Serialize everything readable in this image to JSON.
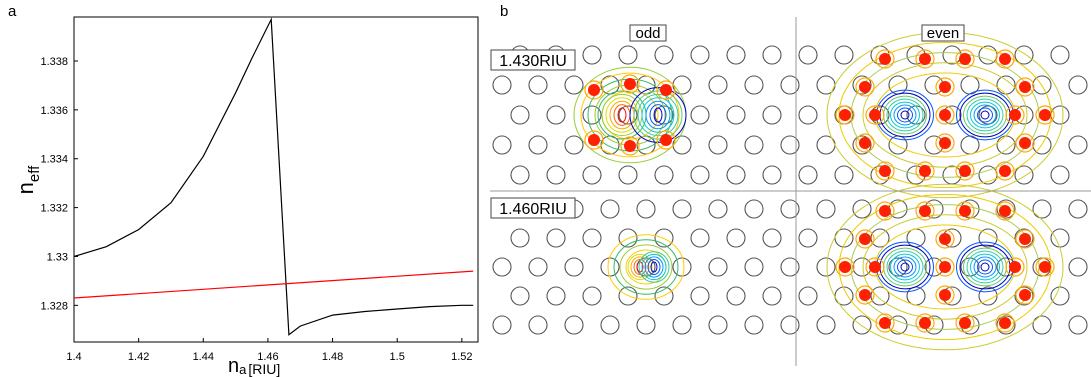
{
  "panel_labels": {
    "a": "a",
    "b": "b"
  },
  "chart_data": [
    {
      "type": "line",
      "panel": "a",
      "xlabel_main": "n",
      "xlabel_sub": "a",
      "xlabel_unit": "[RIU]",
      "ylabel_main": "n",
      "ylabel_sub": "eff",
      "xlim": [
        1.4,
        1.525
      ],
      "ylim": [
        1.3265,
        1.3398
      ],
      "xticks": [
        "1.4",
        "1.42",
        "1.44",
        "1.46",
        "1.48",
        "1.5",
        "1.52"
      ],
      "yticks": [
        "1.328",
        "1.33",
        "1.332",
        "1.334",
        "1.336",
        "1.338"
      ],
      "series": [
        {
          "color": "#000000",
          "x": [
            1.4,
            1.41,
            1.42,
            1.43,
            1.44,
            1.45,
            1.455,
            1.461,
            1.4665,
            1.47,
            1.48,
            1.49,
            1.5,
            1.51,
            1.52,
            1.5235
          ],
          "y": [
            1.33,
            1.3304,
            1.3311,
            1.3322,
            1.3341,
            1.3367,
            1.3381,
            1.3397,
            1.3268,
            1.32715,
            1.3276,
            1.32775,
            1.32785,
            1.32795,
            1.328,
            1.328
          ]
        },
        {
          "color": "#ff0000",
          "x": [
            1.4,
            1.5235
          ],
          "y": [
            1.3283,
            1.3294
          ]
        }
      ]
    },
    {
      "type": "heatmap",
      "panel": "b",
      "columns": [
        "odd",
        "even"
      ],
      "rows": [
        "1.430RIU",
        "1.460RIU"
      ]
    }
  ]
}
